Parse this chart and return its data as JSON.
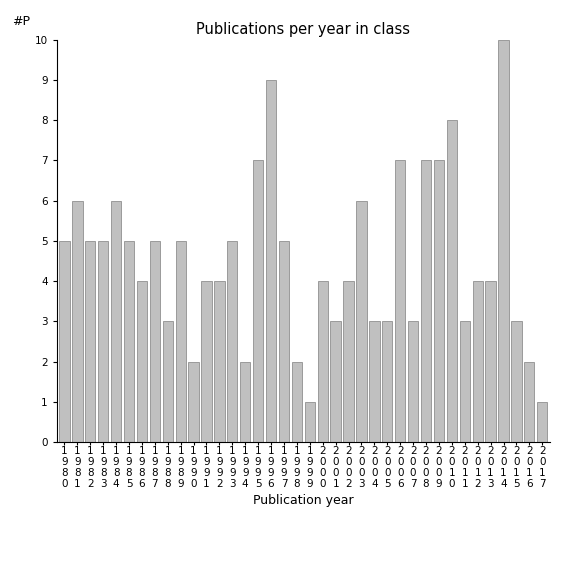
{
  "title": "Publications per year in class",
  "xlabel": "Publication year",
  "ylabel": "#P",
  "years": [
    "1980",
    "1981",
    "1982",
    "1983",
    "1984",
    "1985",
    "1986",
    "1987",
    "1988",
    "1989",
    "1990",
    "1991",
    "1992",
    "1993",
    "1994",
    "1995",
    "1996",
    "1997",
    "1998",
    "1999",
    "2000",
    "2001",
    "2002",
    "2003",
    "2004",
    "2005",
    "2006",
    "2007",
    "2008",
    "2009",
    "2010",
    "2011",
    "2012",
    "2013",
    "2014",
    "2015",
    "2016",
    "2017"
  ],
  "values": [
    5,
    6,
    5,
    5,
    6,
    5,
    4,
    5,
    3,
    5,
    2,
    4,
    4,
    5,
    2,
    7,
    9,
    5,
    2,
    1,
    4,
    3,
    4,
    6,
    3,
    3,
    7,
    3,
    7,
    7,
    8,
    3,
    4,
    4,
    10,
    3,
    2,
    1
  ],
  "bar_color": "#c0c0c0",
  "bar_edgecolor": "#808080",
  "ylim": [
    0,
    10
  ],
  "yticks": [
    0,
    1,
    2,
    3,
    4,
    5,
    6,
    7,
    8,
    9,
    10
  ],
  "title_fontsize": 10.5,
  "label_fontsize": 9,
  "tick_fontsize": 7.5,
  "bg_color": "#ffffff"
}
